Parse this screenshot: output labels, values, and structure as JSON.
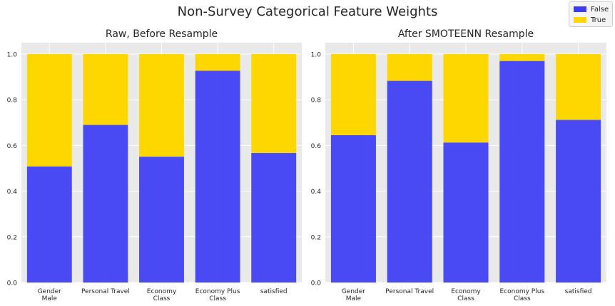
{
  "figure": {
    "title": "Non-Survey Categorical Feature Weights"
  },
  "legend": {
    "entries": [
      {
        "label": "False",
        "color": "#3c3cf5"
      },
      {
        "label": "True",
        "color": "#ffd700"
      }
    ]
  },
  "chart_data": [
    {
      "type": "bar",
      "stacked": true,
      "title": "Raw, Before Resample",
      "categories": [
        [
          "Gender",
          "Male"
        ],
        [
          "Personal Travel"
        ],
        [
          "Economy",
          "Class"
        ],
        [
          "Economy Plus",
          "Class"
        ],
        [
          "satisfied"
        ]
      ],
      "series": [
        {
          "name": "False",
          "color": "#3c3cf5",
          "values": [
            0.508,
            0.69,
            0.551,
            0.927,
            0.567
          ]
        },
        {
          "name": "True",
          "color": "#ffd700",
          "values": [
            0.492,
            0.31,
            0.449,
            0.073,
            0.433
          ]
        }
      ],
      "ylim": [
        0,
        1.05
      ],
      "yticks": [
        "0.0",
        "0.2",
        "0.4",
        "0.6",
        "0.8",
        "1.0"
      ],
      "grid": true
    },
    {
      "type": "bar",
      "stacked": true,
      "title": "After SMOTEENN Resample",
      "categories": [
        [
          "Gender",
          "Male"
        ],
        [
          "Personal Travel"
        ],
        [
          "Economy",
          "Class"
        ],
        [
          "Economy Plus",
          "Class"
        ],
        [
          "satisfied"
        ]
      ],
      "series": [
        {
          "name": "False",
          "color": "#3c3cf5",
          "values": [
            0.645,
            0.883,
            0.613,
            0.97,
            0.712
          ]
        },
        {
          "name": "True",
          "color": "#ffd700",
          "values": [
            0.355,
            0.117,
            0.387,
            0.03,
            0.288
          ]
        }
      ],
      "ylim": [
        0,
        1.05
      ],
      "yticks": [
        "0.0",
        "0.2",
        "0.4",
        "0.6",
        "0.8",
        "1.0"
      ],
      "grid": true
    }
  ]
}
